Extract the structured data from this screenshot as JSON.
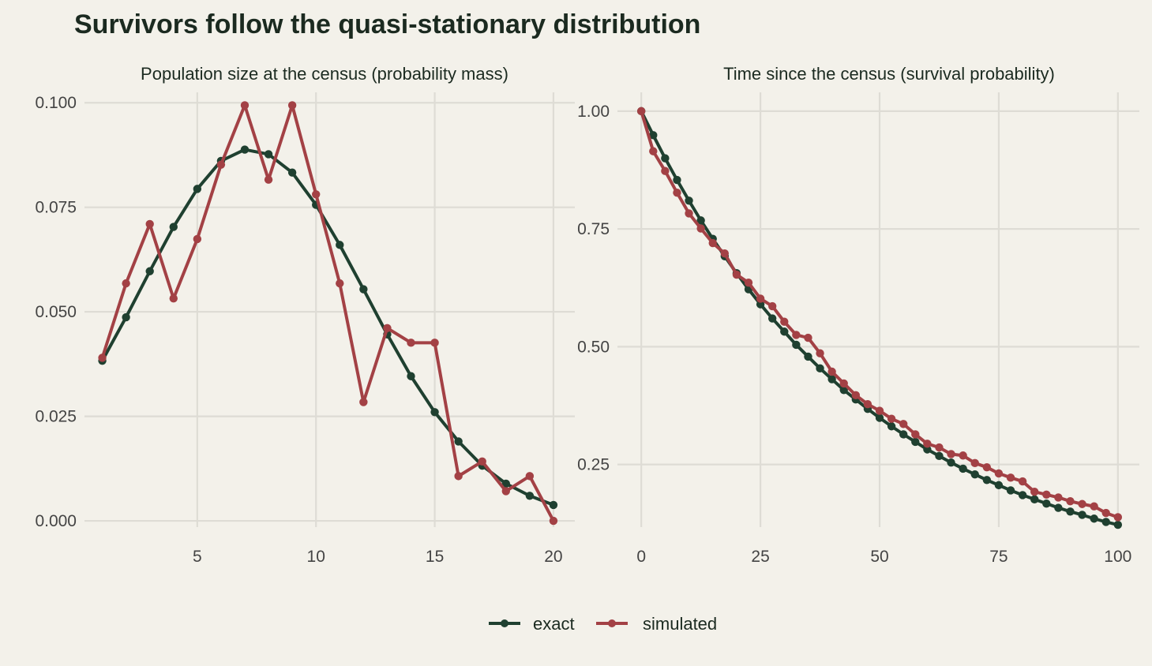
{
  "title": "Survivors follow the quasi-stationary distribution",
  "colors": {
    "exact": "#1f4030",
    "simulated": "#a34145",
    "background": "#f3f1ea",
    "grid": "#dedcd5"
  },
  "legend": {
    "placement": "bottom",
    "items": [
      {
        "key": "exact",
        "label": "exact"
      },
      {
        "key": "simulated",
        "label": "simulated"
      }
    ]
  },
  "chart_data": [
    {
      "type": "line",
      "panel_title": "Population size at the census (probability mass)",
      "xlim": [
        0.25,
        20.9
      ],
      "ylim": [
        -0.0015,
        0.1025
      ],
      "x_ticks": [
        5,
        10,
        15,
        20
      ],
      "x_tick_labels": [
        "5",
        "10",
        "15",
        "20"
      ],
      "y_ticks": [
        0,
        0.025,
        0.05,
        0.075,
        0.1
      ],
      "y_tick_labels": [
        "0.000",
        "0.025",
        "0.050",
        "0.075",
        "0.100"
      ],
      "grid": true,
      "x": [
        1,
        2,
        3,
        4,
        5,
        6,
        7,
        8,
        9,
        10,
        11,
        12,
        13,
        14,
        15,
        16,
        17,
        18,
        19,
        20
      ],
      "series": [
        {
          "name": "exact",
          "values": [
            0.0383,
            0.0487,
            0.0597,
            0.0703,
            0.0794,
            0.0861,
            0.0888,
            0.0877,
            0.0833,
            0.0756,
            0.066,
            0.0554,
            0.0446,
            0.0346,
            0.026,
            0.019,
            0.0132,
            0.0089,
            0.006,
            0.0038
          ]
        },
        {
          "name": "simulated",
          "values": [
            0.039,
            0.0568,
            0.071,
            0.0532,
            0.0674,
            0.0852,
            0.0994,
            0.0816,
            0.0994,
            0.0781,
            0.0568,
            0.0284,
            0.0461,
            0.0426,
            0.0426,
            0.0107,
            0.0142,
            0.0071,
            0.0107,
            0.0
          ]
        }
      ]
    },
    {
      "type": "line",
      "panel_title": "Time since the census (survival probability)",
      "xlim": [
        -5,
        104.5
      ],
      "ylim": [
        0.117,
        1.04
      ],
      "x_ticks": [
        0,
        25,
        50,
        75,
        100
      ],
      "x_tick_labels": [
        "0",
        "25",
        "50",
        "75",
        "100"
      ],
      "y_ticks": [
        0.25,
        0.5,
        0.75,
        1.0
      ],
      "y_tick_labels": [
        "0.25",
        "0.50",
        "0.75",
        "1.00"
      ],
      "grid": true,
      "x": [
        0,
        2.5,
        5,
        7.5,
        10,
        12.5,
        15,
        17.5,
        20,
        22.5,
        25,
        27.5,
        30,
        32.5,
        35,
        37.5,
        40,
        42.5,
        45,
        47.5,
        50,
        52.5,
        55,
        57.5,
        60,
        62.5,
        65,
        67.5,
        70,
        72.5,
        75,
        77.5,
        80,
        82.5,
        85,
        87.5,
        90,
        92.5,
        95,
        97.5,
        100
      ],
      "series": [
        {
          "name": "exact",
          "values": [
            1.0,
            0.949,
            0.9,
            0.854,
            0.81,
            0.768,
            0.729,
            0.692,
            0.656,
            0.622,
            0.59,
            0.56,
            0.532,
            0.504,
            0.479,
            0.454,
            0.431,
            0.408,
            0.388,
            0.368,
            0.349,
            0.331,
            0.314,
            0.298,
            0.282,
            0.268,
            0.254,
            0.241,
            0.229,
            0.217,
            0.206,
            0.195,
            0.185,
            0.176,
            0.167,
            0.158,
            0.15,
            0.143,
            0.135,
            0.128,
            0.122
          ]
        },
        {
          "name": "simulated",
          "values": [
            1.0,
            0.915,
            0.873,
            0.827,
            0.783,
            0.751,
            0.72,
            0.698,
            0.653,
            0.636,
            0.602,
            0.586,
            0.553,
            0.525,
            0.519,
            0.486,
            0.447,
            0.422,
            0.397,
            0.378,
            0.364,
            0.347,
            0.336,
            0.314,
            0.294,
            0.286,
            0.272,
            0.269,
            0.253,
            0.244,
            0.231,
            0.222,
            0.214,
            0.192,
            0.186,
            0.18,
            0.172,
            0.166,
            0.161,
            0.147,
            0.138
          ]
        }
      ]
    }
  ]
}
